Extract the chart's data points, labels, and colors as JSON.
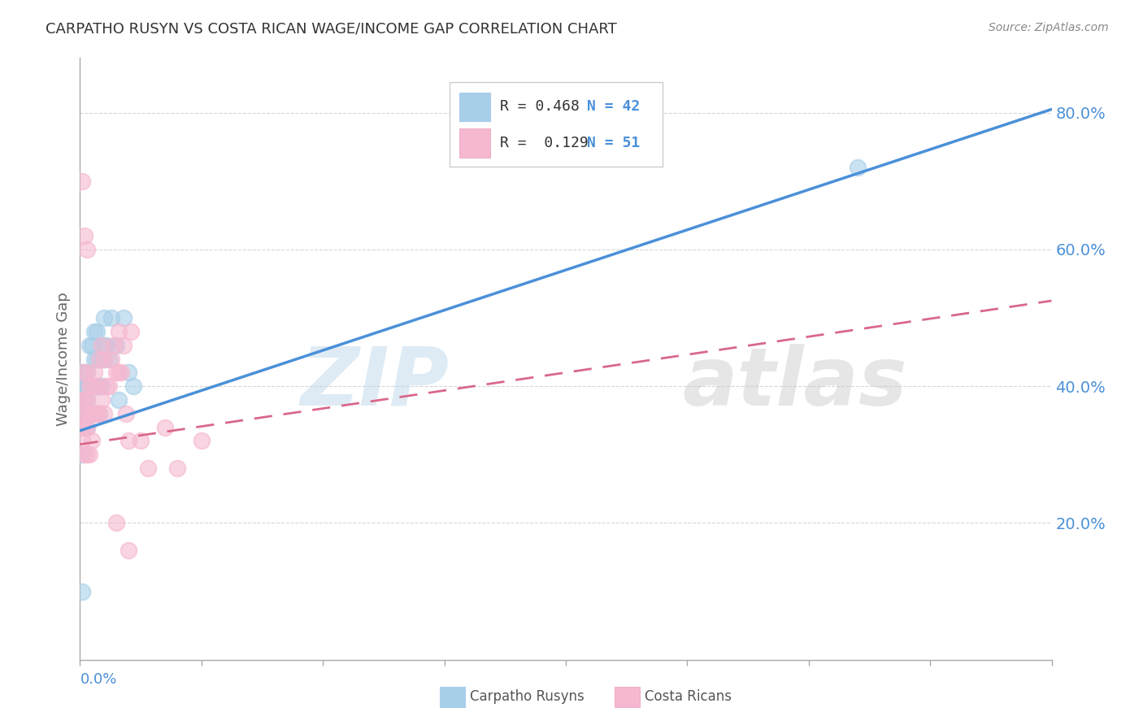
{
  "title": "CARPATHO RUSYN VS COSTA RICAN WAGE/INCOME GAP CORRELATION CHART",
  "source": "Source: ZipAtlas.com",
  "ylabel": "Wage/Income Gap",
  "xlim": [
    0.0,
    0.4
  ],
  "ylim": [
    0.0,
    0.88
  ],
  "watermark": "ZIPatlas",
  "color_blue": "#a8cfe8",
  "color_pink": "#f5b8d0",
  "color_blue_line": "#4a90d9",
  "color_pink_line": "#d9688a",
  "color_grid": "#cccccc",
  "color_ytick": "#4a90d9",
  "blue_line_x0": 0.0,
  "blue_line_y0": 0.335,
  "blue_line_x1": 0.4,
  "blue_line_y1": 0.805,
  "pink_line_x0": 0.0,
  "pink_line_y0": 0.315,
  "pink_line_x1": 0.4,
  "pink_line_y1": 0.525,
  "blue_x": [
    0.001,
    0.001,
    0.001,
    0.001,
    0.001,
    0.002,
    0.002,
    0.002,
    0.002,
    0.003,
    0.003,
    0.003,
    0.003,
    0.003,
    0.004,
    0.004,
    0.004,
    0.005,
    0.005,
    0.005,
    0.006,
    0.006,
    0.006,
    0.007,
    0.007,
    0.008,
    0.008,
    0.009,
    0.009,
    0.01,
    0.01,
    0.01,
    0.011,
    0.012,
    0.013,
    0.015,
    0.016,
    0.018,
    0.02,
    0.022,
    0.32,
    0.001
  ],
  "blue_y": [
    0.36,
    0.38,
    0.4,
    0.42,
    0.3,
    0.36,
    0.38,
    0.4,
    0.42,
    0.34,
    0.36,
    0.38,
    0.4,
    0.42,
    0.36,
    0.4,
    0.46,
    0.36,
    0.4,
    0.46,
    0.4,
    0.44,
    0.48,
    0.44,
    0.48,
    0.36,
    0.4,
    0.4,
    0.44,
    0.44,
    0.46,
    0.5,
    0.46,
    0.44,
    0.5,
    0.46,
    0.38,
    0.5,
    0.42,
    0.4,
    0.72,
    0.1
  ],
  "pink_x": [
    0.001,
    0.001,
    0.001,
    0.001,
    0.001,
    0.002,
    0.002,
    0.002,
    0.002,
    0.003,
    0.003,
    0.003,
    0.003,
    0.004,
    0.004,
    0.004,
    0.005,
    0.005,
    0.005,
    0.006,
    0.006,
    0.007,
    0.007,
    0.008,
    0.008,
    0.009,
    0.009,
    0.01,
    0.01,
    0.011,
    0.012,
    0.013,
    0.014,
    0.015,
    0.016,
    0.016,
    0.017,
    0.018,
    0.019,
    0.02,
    0.021,
    0.025,
    0.028,
    0.035,
    0.04,
    0.05,
    0.001,
    0.002,
    0.003,
    0.015,
    0.02
  ],
  "pink_y": [
    0.32,
    0.34,
    0.36,
    0.38,
    0.42,
    0.3,
    0.34,
    0.36,
    0.38,
    0.3,
    0.34,
    0.38,
    0.42,
    0.3,
    0.36,
    0.4,
    0.32,
    0.36,
    0.4,
    0.36,
    0.42,
    0.36,
    0.4,
    0.36,
    0.44,
    0.38,
    0.46,
    0.36,
    0.44,
    0.4,
    0.4,
    0.44,
    0.46,
    0.42,
    0.42,
    0.48,
    0.42,
    0.46,
    0.36,
    0.32,
    0.48,
    0.32,
    0.28,
    0.34,
    0.28,
    0.32,
    0.7,
    0.62,
    0.6,
    0.2,
    0.16
  ]
}
